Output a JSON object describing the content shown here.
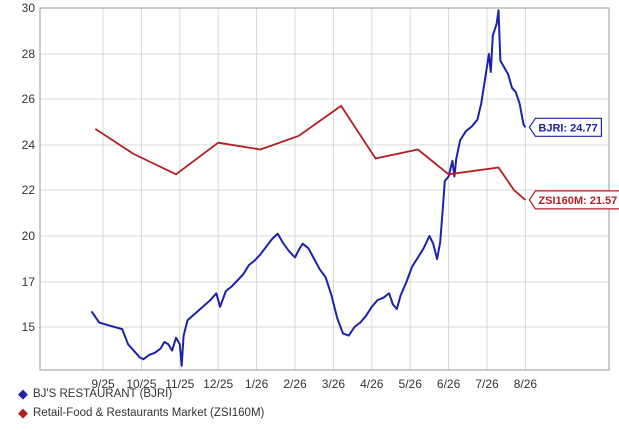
{
  "chart_data": {
    "type": "line",
    "title": "",
    "xlabel": "",
    "ylabel": "",
    "ylim": [
      13,
      30
    ],
    "y_ticks": [
      15,
      17,
      20,
      22,
      24,
      26,
      28,
      30
    ],
    "x_ticks": [
      "9/25",
      "10/25",
      "11/25",
      "12/25",
      "1/26",
      "2/26",
      "3/26",
      "4/26",
      "5/26",
      "6/26",
      "7/26",
      "8/26"
    ],
    "grid": true,
    "legend_placement": "bottom-left",
    "series": [
      {
        "name": "BJ'S RESTAURANT (BJRI)",
        "color": "#1e22aa",
        "callout": "BJRI: 24.77",
        "last_value": 24.77,
        "points": [
          [
            -0.3,
            15.7
          ],
          [
            -0.1,
            15.2
          ],
          [
            0.1,
            15.1
          ],
          [
            0.3,
            15.0
          ],
          [
            0.5,
            14.9
          ],
          [
            0.65,
            14.2
          ],
          [
            0.8,
            13.9
          ],
          [
            0.95,
            13.6
          ],
          [
            1.05,
            13.5
          ],
          [
            1.2,
            13.7
          ],
          [
            1.35,
            13.8
          ],
          [
            1.5,
            14.0
          ],
          [
            1.6,
            14.3
          ],
          [
            1.7,
            14.2
          ],
          [
            1.8,
            13.9
          ],
          [
            1.9,
            14.5
          ],
          [
            2.0,
            14.2
          ],
          [
            2.05,
            13.2
          ],
          [
            2.1,
            14.6
          ],
          [
            2.2,
            15.3
          ],
          [
            2.4,
            15.6
          ],
          [
            2.6,
            15.9
          ],
          [
            2.8,
            16.2
          ],
          [
            2.95,
            16.5
          ],
          [
            3.05,
            15.9
          ],
          [
            3.2,
            16.6
          ],
          [
            3.35,
            16.8
          ],
          [
            3.5,
            17.1
          ],
          [
            3.65,
            17.5
          ],
          [
            3.8,
            18.1
          ],
          [
            3.95,
            18.4
          ],
          [
            4.1,
            18.8
          ],
          [
            4.25,
            19.3
          ],
          [
            4.4,
            19.8
          ],
          [
            4.55,
            20.1
          ],
          [
            4.7,
            19.5
          ],
          [
            4.85,
            19.0
          ],
          [
            5.0,
            18.6
          ],
          [
            5.1,
            19.1
          ],
          [
            5.2,
            19.5
          ],
          [
            5.35,
            19.2
          ],
          [
            5.5,
            18.5
          ],
          [
            5.65,
            17.8
          ],
          [
            5.8,
            17.3
          ],
          [
            5.95,
            16.4
          ],
          [
            6.1,
            15.4
          ],
          [
            6.25,
            14.7
          ],
          [
            6.4,
            14.6
          ],
          [
            6.55,
            15.0
          ],
          [
            6.7,
            15.2
          ],
          [
            6.85,
            15.5
          ],
          [
            7.0,
            15.9
          ],
          [
            7.15,
            16.2
          ],
          [
            7.3,
            16.3
          ],
          [
            7.45,
            16.5
          ],
          [
            7.55,
            16.0
          ],
          [
            7.65,
            15.8
          ],
          [
            7.75,
            16.4
          ],
          [
            7.9,
            17.0
          ],
          [
            8.05,
            18.0
          ],
          [
            8.2,
            18.6
          ],
          [
            8.35,
            19.2
          ],
          [
            8.5,
            20.0
          ],
          [
            8.6,
            19.5
          ],
          [
            8.7,
            18.5
          ],
          [
            8.78,
            19.6
          ],
          [
            8.85,
            21.2
          ],
          [
            8.9,
            22.4
          ],
          [
            9.0,
            22.6
          ],
          [
            9.1,
            23.3
          ],
          [
            9.15,
            22.6
          ],
          [
            9.2,
            23.4
          ],
          [
            9.3,
            24.2
          ],
          [
            9.45,
            24.6
          ],
          [
            9.6,
            24.8
          ],
          [
            9.75,
            25.1
          ],
          [
            9.85,
            25.8
          ],
          [
            9.95,
            26.9
          ],
          [
            10.05,
            28.0
          ],
          [
            10.1,
            27.2
          ],
          [
            10.15,
            28.8
          ],
          [
            10.25,
            29.3
          ],
          [
            10.3,
            29.9
          ],
          [
            10.35,
            27.7
          ],
          [
            10.45,
            27.4
          ],
          [
            10.55,
            27.1
          ],
          [
            10.65,
            26.5
          ],
          [
            10.75,
            26.3
          ],
          [
            10.85,
            25.8
          ],
          [
            10.95,
            24.9
          ],
          [
            11.0,
            24.77
          ]
        ]
      },
      {
        "name": "Retail-Food & Restaurants Market (ZSI160M)",
        "color": "#b41e23",
        "callout": "ZSI160M: 21.57",
        "last_value": 21.57,
        "points": [
          [
            -0.2,
            24.7
          ],
          [
            0.8,
            23.6
          ],
          [
            1.9,
            22.7
          ],
          [
            3.0,
            24.1
          ],
          [
            4.1,
            23.8
          ],
          [
            5.1,
            24.4
          ],
          [
            6.2,
            25.7
          ],
          [
            7.1,
            23.4
          ],
          [
            8.2,
            23.8
          ],
          [
            9.0,
            22.7
          ],
          [
            10.3,
            23.0
          ],
          [
            10.7,
            22.0
          ],
          [
            11.0,
            21.57
          ]
        ]
      }
    ]
  }
}
